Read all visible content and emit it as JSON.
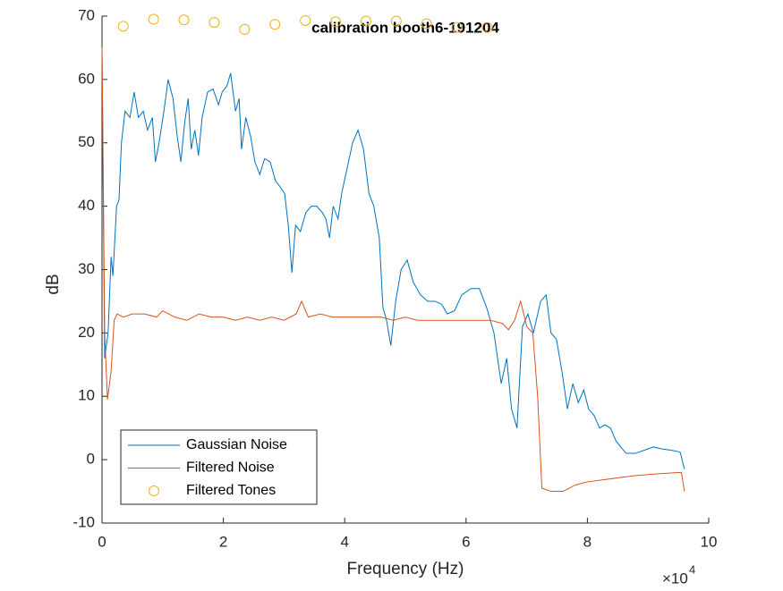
{
  "chart_data": {
    "type": "line",
    "title": "calibration booth6-191204",
    "x_label": "Frequency (Hz)",
    "y_label": "dB",
    "x_multiplier": "×10",
    "x_multiplier_exponent": "4",
    "xlim": [
      0,
      100000
    ],
    "xticks": [
      {
        "value": 0,
        "label": "0"
      },
      {
        "value": 20000,
        "label": "2"
      },
      {
        "value": 40000,
        "label": "4"
      },
      {
        "value": 60000,
        "label": "6"
      },
      {
        "value": 80000,
        "label": "8"
      },
      {
        "value": 100000,
        "label": "10"
      }
    ],
    "ylim": [
      -10,
      70
    ],
    "yticks": [
      -10,
      0,
      10,
      20,
      30,
      40,
      50,
      60,
      70
    ],
    "grid": false,
    "legend": "southwest",
    "series": [
      {
        "name": "Gaussian Noise",
        "color": "#0072BD",
        "mode": "line",
        "x": [
          0,
          440,
          1000,
          1500,
          1800,
          2400,
          2800,
          3200,
          3800,
          4600,
          5300,
          6000,
          6800,
          7500,
          8300,
          8800,
          9400,
          10200,
          10900,
          11700,
          12400,
          13000,
          13600,
          14200,
          14700,
          15300,
          15900,
          16500,
          17400,
          18300,
          19200,
          19800,
          20600,
          21200,
          22000,
          22600,
          23000,
          23700,
          24500,
          25200,
          26000,
          26800,
          27700,
          28600,
          29400,
          30100,
          30700,
          31300,
          31900,
          32700,
          33600,
          34500,
          35400,
          36300,
          36900,
          37500,
          38100,
          38900,
          39500,
          40400,
          41300,
          42200,
          43100,
          44000,
          44800,
          45700,
          46300,
          46900,
          47600,
          48400,
          49300,
          50300,
          51300,
          52500,
          53700,
          54900,
          56000,
          56900,
          58100,
          59300,
          60800,
          62200,
          63400,
          64600,
          65800,
          66700,
          67500,
          68400,
          69300,
          70200,
          71100,
          72300,
          73200,
          74000,
          74900,
          75800,
          76700,
          77600,
          78500,
          79400,
          80200,
          81100,
          82000,
          82900,
          83800,
          84700,
          85500,
          86400,
          87900,
          89400,
          90900,
          92300,
          93800,
          95300,
          96000
        ],
        "values": [
          65,
          16,
          20,
          32,
          29,
          40,
          41,
          50,
          55,
          54,
          58,
          54,
          55,
          52,
          54,
          47,
          50,
          55,
          60,
          57,
          51,
          47,
          53,
          57,
          49,
          52,
          48,
          54,
          58,
          58.5,
          56,
          58,
          59,
          61,
          55,
          57,
          49,
          54,
          51,
          47,
          45,
          47.5,
          47,
          44,
          43,
          42,
          37,
          29.5,
          37,
          36,
          39,
          40,
          40,
          39,
          38,
          35,
          40,
          38,
          42,
          46,
          50,
          52,
          49,
          42,
          40,
          35,
          24,
          22,
          18,
          25,
          30,
          31.5,
          28,
          26,
          25,
          25,
          24.5,
          23,
          23.5,
          26,
          27,
          27,
          24,
          20,
          12,
          16,
          8,
          5,
          21,
          23,
          20,
          25,
          26,
          20,
          19,
          14,
          8,
          12,
          9,
          11,
          8,
          7,
          5,
          5.5,
          5,
          3,
          2,
          1,
          1,
          1.5,
          2,
          1.7,
          1.5,
          1.2,
          -1.5
        ]
      },
      {
        "name": "Filtered Noise",
        "color": "#D95319",
        "mode": "line",
        "x": [
          0,
          440,
          900,
          1500,
          2000,
          2500,
          3500,
          5000,
          7000,
          9000,
          10000,
          12000,
          14000,
          16000,
          18000,
          20000,
          22000,
          24000,
          26000,
          28000,
          30000,
          32000,
          32900,
          34000,
          36000,
          38000,
          40000,
          42000,
          44000,
          46000,
          48000,
          50000,
          52000,
          54000,
          56000,
          58000,
          60000,
          62000,
          64000,
          66000,
          67000,
          68000,
          69000,
          70000,
          71000,
          71800,
          72500,
          74000,
          76000,
          78000,
          80000,
          84000,
          88000,
          92000,
          95500,
          96000
        ],
        "values": [
          65,
          20,
          9.5,
          14,
          22,
          23,
          22.5,
          23,
          23,
          22.5,
          23.5,
          22.5,
          22,
          23,
          22.5,
          22.5,
          22,
          22.5,
          22,
          22.5,
          22,
          23,
          25,
          22.5,
          23,
          22.5,
          22.5,
          22.5,
          22.5,
          22.5,
          22,
          22.5,
          22,
          22,
          22,
          22,
          22,
          22,
          22,
          21.5,
          20.5,
          22,
          25,
          21,
          20,
          10,
          -4.5,
          -5,
          -5,
          -4,
          -3.5,
          -3,
          -2.5,
          -2.2,
          -2,
          -5
        ]
      },
      {
        "name": "Filtered Tones",
        "color": "#EDB120",
        "mode": "markers",
        "x": [
          3500,
          8500,
          13500,
          18500,
          23500,
          28500,
          33500,
          38500,
          43500,
          48500,
          53500,
          58500,
          63500
        ],
        "values": [
          68.4,
          69.5,
          69.4,
          69.0,
          67.9,
          68.7,
          69.3,
          69.1,
          69.2,
          69.2,
          68.8,
          68.2,
          68.2
        ]
      }
    ]
  }
}
